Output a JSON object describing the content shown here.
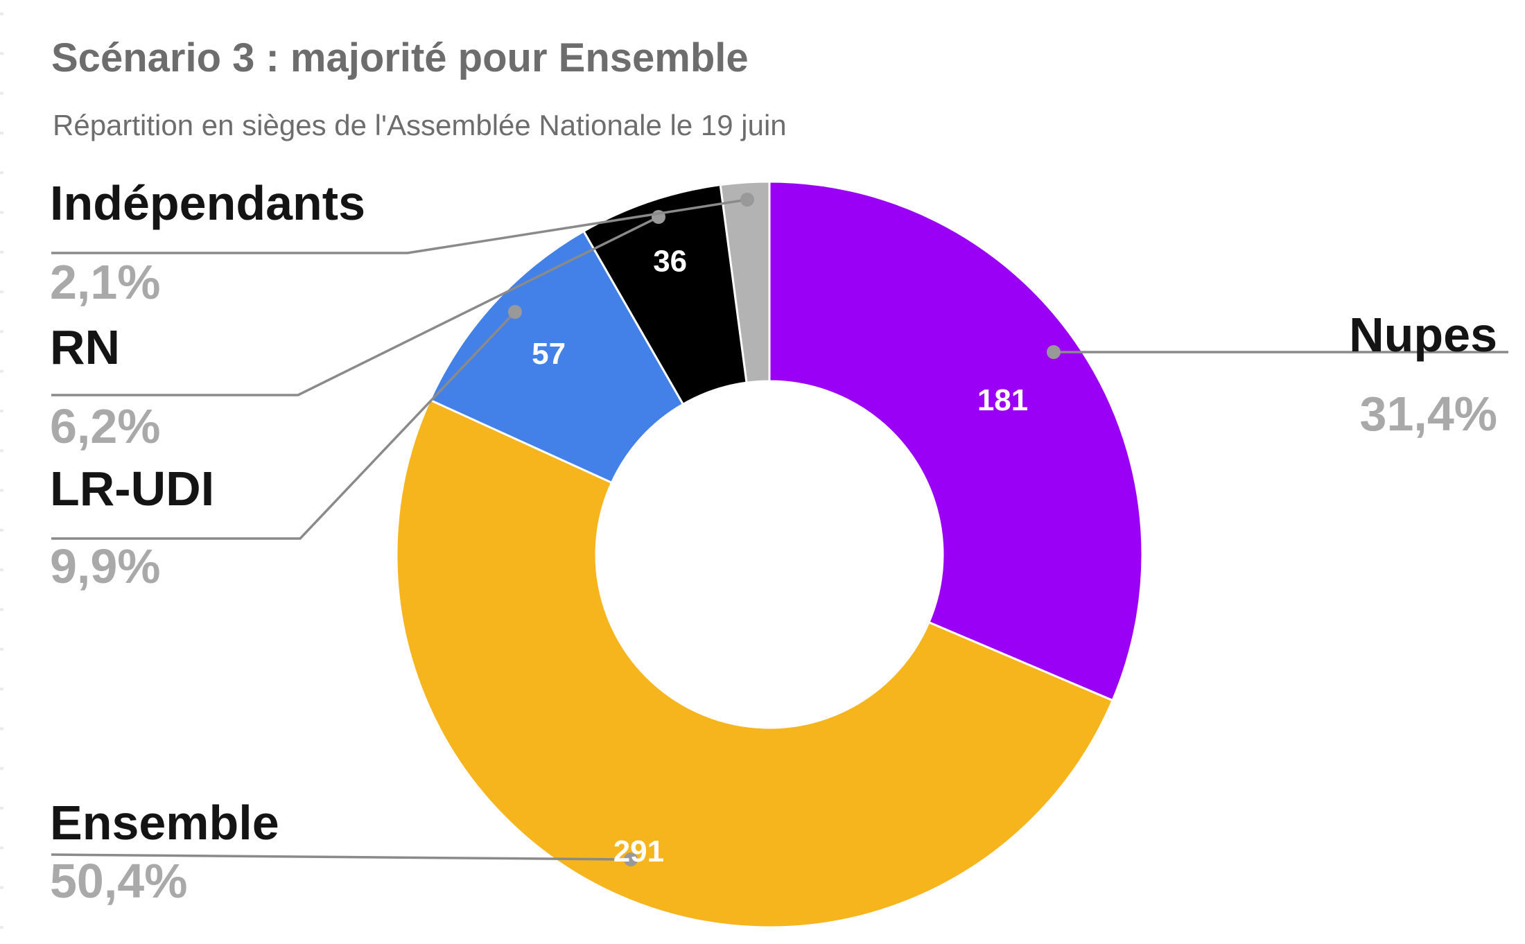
{
  "header": {
    "title": "Scénario 3 : majorité pour Ensemble",
    "subtitle": "Répartition en sièges de l'Assemblée Nationale le 19 juin"
  },
  "colors": {
    "background": "#ffffff",
    "title_gray": "#6d6d6d",
    "label_black": "#141414",
    "pct_gray": "#a9a9a9",
    "callout_gray": "#8a8a8a",
    "callout_dot": "#999999",
    "value_white": "#ffffff",
    "separator_white": "#ffffff",
    "edge_tick": "#ebebeb"
  },
  "chart_data": {
    "type": "pie",
    "subtype": "donut",
    "title": "Scénario 3 : majorité pour Ensemble",
    "subtitle": "Répartition en sièges de l'Assemblée Nationale le 19 juin",
    "start_angle_deg": 0,
    "direction": "clockwise",
    "legend_position": "callouts",
    "slices": [
      {
        "label": "Nupes",
        "seats": 181,
        "pct": 31.4,
        "pct_label": "31,4%",
        "value_label": "181",
        "color": "#9900f5"
      },
      {
        "label": "Ensemble",
        "seats": 291,
        "pct": 50.4,
        "pct_label": "50,4%",
        "value_label": "291",
        "color": "#f6b41d"
      },
      {
        "label": "LR-UDI",
        "seats": 57,
        "pct": 9.9,
        "pct_label": "9,9%",
        "value_label": "57",
        "color": "#4381e8"
      },
      {
        "label": "RN",
        "seats": 36,
        "pct": 6.2,
        "pct_label": "6,2%",
        "value_label": "36",
        "color": "#000000"
      },
      {
        "label": "Indépendants",
        "seats": null,
        "pct": 2.1,
        "pct_label": "2,1%",
        "value_label": "",
        "color": "#b3b3b3"
      }
    ]
  }
}
